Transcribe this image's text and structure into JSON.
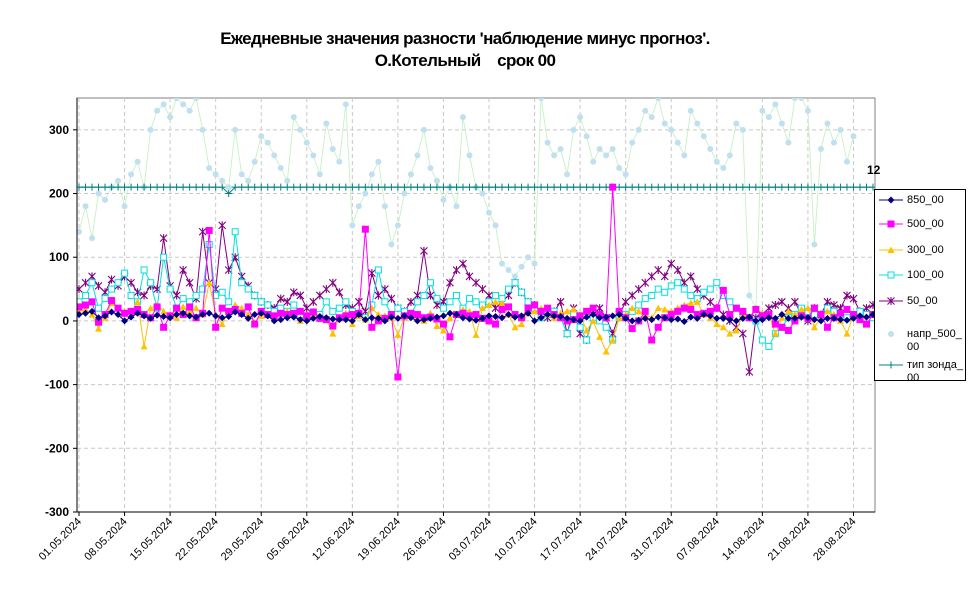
{
  "title": {
    "line1": "Ежедневные значения разности 'наблюдение минус прогноз'.",
    "line2": "О.Котельный    срок 00"
  },
  "annotation": "12",
  "chart_data": {
    "type": "line",
    "title": "Ежедневные значения разности 'наблюдение минус прогноз'. О.Котельный срок 00",
    "ylim": [
      -300,
      350
    ],
    "yticks": [
      "300",
      "200",
      "100",
      "0",
      "-100",
      "-200",
      "-300"
    ],
    "ytick_values": [
      300,
      200,
      100,
      0,
      -100,
      -200,
      -300
    ],
    "x_range": [
      "01.05.2024",
      "31.08.2024"
    ],
    "xticks": [
      "01.05.2024",
      "08.05.2024",
      "15.05.2024",
      "22.05.2024",
      "29.05.2024",
      "05.06.2024",
      "12.06.2024",
      "19.06.2024",
      "26.06.2024",
      "03.07.2024",
      "10.07.2024",
      "17.07.2024",
      "24.07.2024",
      "31.07.2024",
      "07.08.2024",
      "14.08.2024",
      "21.08.2024",
      "28.08.2024"
    ],
    "grid": true,
    "legend_position": "right",
    "series": [
      {
        "name": "850_00",
        "color": "#000080",
        "marker": "diamond",
        "line": true,
        "values": [
          10,
          12,
          15,
          5,
          8,
          14,
          10,
          0,
          6,
          12,
          8,
          4,
          9,
          7,
          5,
          10,
          12,
          8,
          6,
          10,
          12,
          8,
          5,
          7,
          14,
          10,
          4,
          10,
          12,
          8,
          0,
          2,
          5,
          6,
          2,
          0,
          4,
          7,
          5,
          3,
          2,
          2,
          0,
          10,
          2,
          5,
          4,
          0,
          6,
          4,
          8,
          5,
          0,
          2,
          4,
          6,
          8,
          12,
          10,
          5,
          3,
          1,
          4,
          8,
          7,
          5,
          10,
          6,
          8,
          12,
          0,
          5,
          10,
          8,
          7,
          4,
          2,
          0,
          6,
          10,
          5,
          6,
          8,
          10,
          4,
          0,
          1,
          4,
          2,
          6,
          5,
          2,
          3,
          -1,
          6,
          4,
          10,
          8,
          4,
          4,
          2,
          0,
          4,
          6,
          0,
          2,
          5,
          4,
          10,
          4,
          4,
          6,
          5,
          2,
          0,
          4,
          4,
          2,
          1,
          4,
          8,
          6,
          10
        ]
      },
      {
        "name": "500_00",
        "color": "#ff00ff",
        "marker": "square",
        "line": true,
        "values": [
          22,
          25,
          30,
          -2,
          10,
          32,
          20,
          12,
          15,
          18,
          10,
          5,
          22,
          -10,
          8,
          20,
          10,
          22,
          5,
          12,
          142,
          -10,
          20,
          15,
          18,
          12,
          22,
          -5,
          15,
          10,
          8,
          12,
          10,
          12,
          15,
          8,
          14,
          4,
          2,
          -8,
          5,
          8,
          10,
          12,
          144,
          -10,
          0,
          4,
          10,
          -88,
          8,
          12,
          10,
          5,
          6,
          3,
          -5,
          -25,
          10,
          12,
          8,
          10,
          4,
          0,
          -5,
          18,
          22,
          10,
          5,
          20,
          25,
          15,
          20,
          10,
          5,
          0,
          2,
          8,
          15,
          20,
          10,
          5,
          210,
          15,
          5,
          -12,
          0,
          15,
          -30,
          -10,
          5,
          10,
          15,
          20,
          18,
          10,
          12,
          15,
          20,
          48,
          10,
          20,
          15,
          5,
          18,
          8,
          10,
          -5,
          -10,
          -15,
          0,
          8,
          4,
          20,
          10,
          -10,
          5,
          12,
          18,
          10,
          2,
          -5,
          10
        ]
      },
      {
        "name": "300_00",
        "color": "#ffc000",
        "marker": "triangle",
        "line": true,
        "values": [
          15,
          18,
          10,
          -12,
          5,
          28,
          20,
          15,
          10,
          30,
          -40,
          20,
          25,
          15,
          10,
          5,
          22,
          15,
          20,
          10,
          60,
          10,
          -5,
          15,
          25,
          20,
          10,
          -2,
          8,
          10,
          5,
          12,
          15,
          10,
          0,
          8,
          10,
          5,
          2,
          -20,
          5,
          12,
          -5,
          8,
          2,
          20,
          10,
          8,
          5,
          -22,
          5,
          10,
          8,
          0,
          12,
          -8,
          -15,
          5,
          10,
          18,
          15,
          -22,
          20,
          25,
          30,
          28,
          10,
          -10,
          -5,
          12,
          15,
          20,
          10,
          5,
          12,
          15,
          18,
          10,
          -15,
          0,
          -25,
          -48,
          -30,
          5,
          10,
          20,
          15,
          10,
          5,
          20,
          18,
          15,
          20,
          25,
          28,
          30,
          10,
          5,
          -5,
          -10,
          -20,
          -15,
          10,
          5,
          20,
          12,
          10,
          -20,
          5,
          15,
          10,
          18,
          20,
          -10,
          5,
          15,
          10,
          0,
          -20,
          10,
          5
        ]
      },
      {
        "name": "100_00",
        "color": "#00e0e0",
        "marker": "square-open",
        "line": true,
        "values": [
          30,
          40,
          60,
          20,
          35,
          50,
          60,
          75,
          40,
          30,
          80,
          60,
          20,
          100,
          50,
          20,
          35,
          30,
          40,
          50,
          120,
          40,
          45,
          30,
          140,
          60,
          50,
          40,
          30,
          25,
          15,
          20,
          15,
          25,
          10,
          8,
          12,
          10,
          30,
          15,
          20,
          30,
          15,
          10,
          5,
          25,
          80,
          30,
          10,
          20,
          15,
          10,
          30,
          40,
          60,
          35,
          20,
          30,
          40,
          20,
          35,
          30,
          25,
          30,
          40,
          35,
          50,
          60,
          45,
          30,
          20,
          5,
          10,
          15,
          5,
          -20,
          10,
          -10,
          -30,
          5,
          0,
          -10,
          -30,
          5,
          10,
          15,
          25,
          35,
          40,
          50,
          45,
          55,
          60,
          50,
          40,
          35,
          45,
          50,
          60,
          40,
          30,
          20,
          10,
          5,
          0,
          -30,
          -40,
          -20,
          -10,
          5,
          10,
          20,
          15,
          10,
          5,
          20,
          15,
          10,
          5,
          10,
          15,
          10,
          5,
          20
        ]
      },
      {
        "name": "50_00",
        "color": "#800080",
        "marker": "x",
        "line": true,
        "values": [
          50,
          60,
          70,
          55,
          45,
          65,
          55,
          70,
          60,
          45,
          40,
          55,
          50,
          130,
          55,
          40,
          80,
          60,
          35,
          140,
          60,
          50,
          150,
          80,
          100,
          70,
          55,
          40,
          30,
          25,
          20,
          35,
          30,
          45,
          40,
          20,
          30,
          40,
          50,
          60,
          45,
          25,
          20,
          30,
          15,
          75,
          40,
          50,
          35,
          20,
          15,
          30,
          40,
          110,
          40,
          25,
          30,
          60,
          80,
          90,
          70,
          60,
          50,
          40,
          20,
          30,
          40,
          60,
          45,
          30,
          25,
          10,
          5,
          15,
          30,
          -20,
          20,
          -20,
          -30,
          10,
          20,
          5,
          -20,
          10,
          30,
          40,
          50,
          60,
          70,
          80,
          70,
          90,
          80,
          60,
          70,
          50,
          40,
          30,
          20,
          10,
          0,
          -10,
          -20,
          -80,
          5,
          10,
          20,
          25,
          30,
          20,
          30,
          10,
          0,
          20,
          10,
          30,
          25,
          20,
          40,
          35,
          15,
          20,
          25,
          30,
          10,
          5
        ]
      },
      {
        "name": "напр_500_00",
        "color": "#c0e0f0",
        "marker": "circle",
        "line": true,
        "values": [
          140,
          180,
          130,
          200,
          190,
          210,
          220,
          180,
          230,
          250,
          210,
          300,
          330,
          340,
          320,
          350,
          340,
          330,
          350,
          300,
          240,
          230,
          220,
          210,
          300,
          230,
          220,
          250,
          290,
          280,
          260,
          240,
          220,
          320,
          300,
          280,
          260,
          230,
          310,
          270,
          250,
          340,
          150,
          180,
          200,
          230,
          250,
          180,
          120,
          150,
          200,
          230,
          260,
          300,
          240,
          220,
          190,
          210,
          180,
          320,
          260,
          210,
          200,
          170,
          150,
          90,
          80,
          70,
          85,
          100,
          90,
          350,
          280,
          260,
          270,
          230,
          300,
          320,
          290,
          250,
          270,
          260,
          270,
          240,
          230,
          280,
          300,
          330,
          320,
          350,
          310,
          300,
          280,
          260,
          330,
          310,
          290,
          270,
          250,
          240,
          260,
          310,
          300,
          40,
          20,
          330,
          320,
          340,
          310,
          280,
          350,
          350,
          330,
          120,
          270,
          310,
          280,
          300,
          250,
          290
        ]
      },
      {
        "name": "тип зонда_00",
        "color": "#008080",
        "marker": "plus",
        "line": true,
        "values": [
          210,
          210,
          210,
          210,
          210,
          210,
          210,
          210,
          210,
          210,
          210,
          210,
          210,
          210,
          210,
          210,
          210,
          210,
          210,
          210,
          210,
          210,
          210,
          200,
          210,
          210,
          210,
          210,
          210,
          210,
          210,
          210,
          210,
          210,
          210,
          210,
          210,
          210,
          210,
          210,
          210,
          210,
          210,
          210,
          210,
          210,
          210,
          210,
          210,
          210,
          210,
          210,
          210,
          210,
          210,
          210,
          210,
          210,
          210,
          210,
          210,
          210,
          210,
          210,
          210,
          210,
          210,
          210,
          210,
          210,
          210,
          210,
          210,
          210,
          210,
          210,
          210,
          210,
          210,
          210,
          210,
          210,
          210,
          210,
          210,
          210,
          210,
          210,
          210,
          210,
          210,
          210,
          210,
          210,
          210,
          210,
          210,
          210,
          210,
          210,
          210,
          210,
          210,
          210,
          210,
          210,
          210,
          210,
          210,
          210,
          210,
          210,
          210,
          210,
          210,
          210,
          210,
          210,
          210,
          210,
          210,
          210,
          210
        ]
      }
    ]
  }
}
